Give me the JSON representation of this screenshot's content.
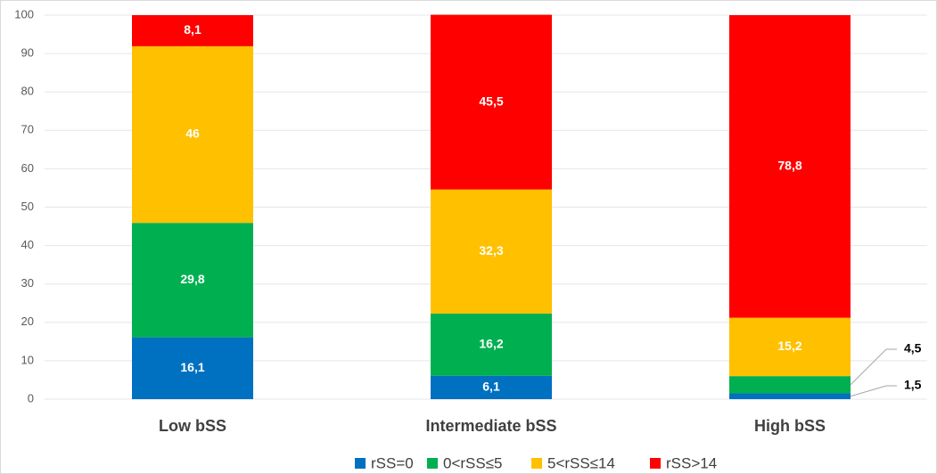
{
  "chart_data": {
    "type": "stacked_bar",
    "categories": [
      "Low bSS",
      "Intermediate bSS",
      "High bSS"
    ],
    "series": [
      {
        "name": "rSS=0",
        "color": "#0070c0",
        "values": [
          16.1,
          6.1,
          1.5
        ],
        "value_labels": [
          "16,1",
          "6,1",
          "1,5"
        ]
      },
      {
        "name": "0<rSS≤5",
        "color": "#00b050",
        "values": [
          29.8,
          16.2,
          4.5
        ],
        "value_labels": [
          "29,8",
          "16,2",
          "4,5"
        ]
      },
      {
        "name": "5<rSS≤14",
        "color": "#ffc000",
        "values": [
          46,
          32.3,
          15.2
        ],
        "value_labels": [
          "46",
          "32,3",
          "15,2"
        ]
      },
      {
        "name": "rSS>14",
        "color": "#ff0000",
        "values": [
          8.1,
          45.5,
          78.8
        ],
        "value_labels": [
          "8,1",
          "45,5",
          "78,8"
        ]
      }
    ],
    "ylim": [
      0,
      100
    ],
    "yticks": [
      0,
      10,
      20,
      30,
      40,
      50,
      60,
      70,
      80,
      90,
      100
    ],
    "grid": true,
    "legend": "bottom"
  }
}
